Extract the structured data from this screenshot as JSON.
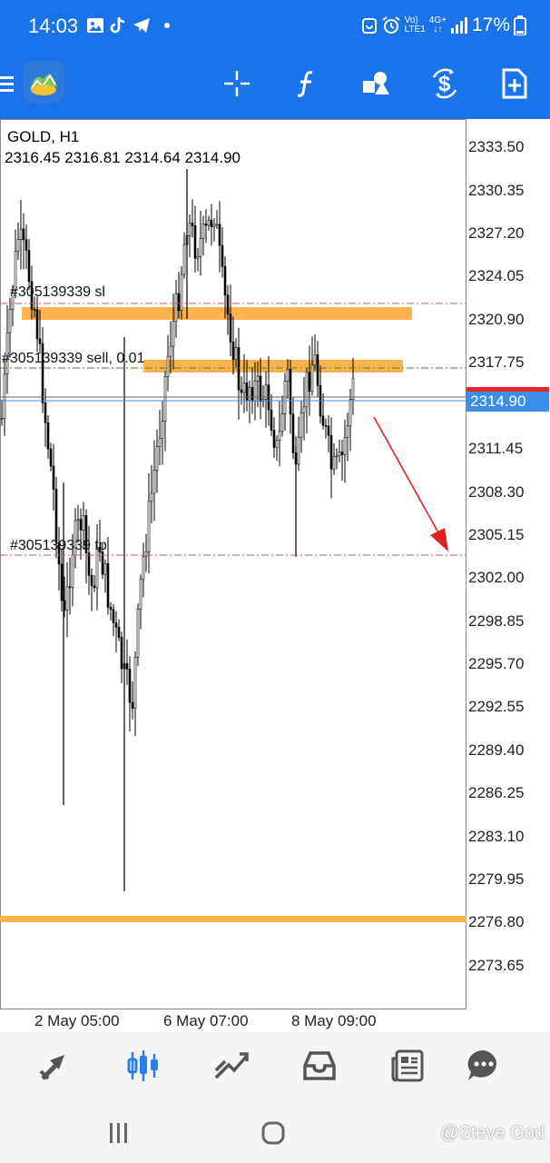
{
  "status_bar": {
    "time": "14:03",
    "network_label_top": "Vo)",
    "network_label_bottom": "LTE1",
    "net_type_top": "4G+",
    "battery_percent": "17%"
  },
  "toolbar": {
    "icons": [
      "menu-icon",
      "metatrader-logo",
      "crosshair-icon",
      "indicators-icon",
      "objects-icon",
      "timeframe-icon",
      "new-order-icon"
    ]
  },
  "chart": {
    "symbol": "GOLD, H1",
    "ohlc": "2316.45 2316.81 2314.64 2314.90",
    "current_price": "2314.90",
    "price_axis": [
      "2333.50",
      "2330.35",
      "2327.20",
      "2324.05",
      "2320.90",
      "2317.75",
      "2311.45",
      "2308.30",
      "2305.15",
      "2302.00",
      "2298.85",
      "2295.70",
      "2292.55",
      "2289.40",
      "2286.25",
      "2283.10",
      "2279.95",
      "2276.80",
      "2273.65"
    ],
    "date_axis": [
      "2 May 05:00",
      "6 May 07:00",
      "8 May 09:00"
    ],
    "orders": {
      "sl_label": "#305139339 sl",
      "sell_label": "#305139339 sell, 0.01",
      "tp_label": "#305139339 tp"
    },
    "colors": {
      "zone": "#ffb14e",
      "sl_tp_line": "#d9534f",
      "entry_line": "#2e8b2e",
      "arrow": "#e02020",
      "price_box": "#3c8fe8"
    }
  },
  "bottom_nav": {
    "items": [
      "quotes-icon",
      "chart-icon",
      "trade-icon",
      "history-icon",
      "news-icon",
      "messages-icon"
    ],
    "active": "chart-icon"
  },
  "watermark": "@Steve God"
}
